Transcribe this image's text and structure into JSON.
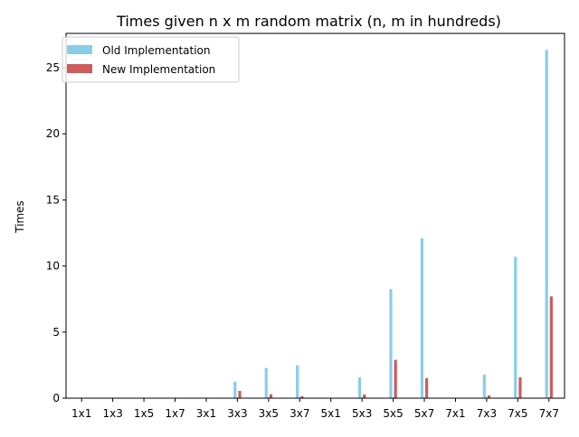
{
  "chart_data": {
    "type": "bar",
    "title": "Times given n x m random matrix (n, m in hundreds)",
    "xlabel": "",
    "ylabel": "Times",
    "ylim": [
      0,
      27.6
    ],
    "yticks": [
      0,
      5,
      10,
      15,
      20,
      25
    ],
    "categories": [
      "1x1",
      "1x3",
      "1x5",
      "1x7",
      "3x1",
      "3x3",
      "3x5",
      "3x7",
      "5x1",
      "5x3",
      "5x5",
      "5x7",
      "7x1",
      "7x3",
      "7x5",
      "7x7"
    ],
    "series": [
      {
        "name": "Old Implementation",
        "color": "#87ceeb",
        "values": [
          0.0,
          0.0,
          0.0,
          0.0,
          0.0,
          1.25,
          2.28,
          2.48,
          0.0,
          1.58,
          8.25,
          12.1,
          0.0,
          1.78,
          10.7,
          26.35
        ]
      },
      {
        "name": "New Implementation",
        "color": "#cd5c5c",
        "values": [
          0.0,
          0.0,
          0.0,
          0.0,
          0.0,
          0.55,
          0.3,
          0.15,
          0.0,
          0.28,
          2.9,
          1.52,
          0.0,
          0.22,
          1.58,
          7.7
        ]
      }
    ],
    "grid": false,
    "legend_position": "upper-left"
  }
}
